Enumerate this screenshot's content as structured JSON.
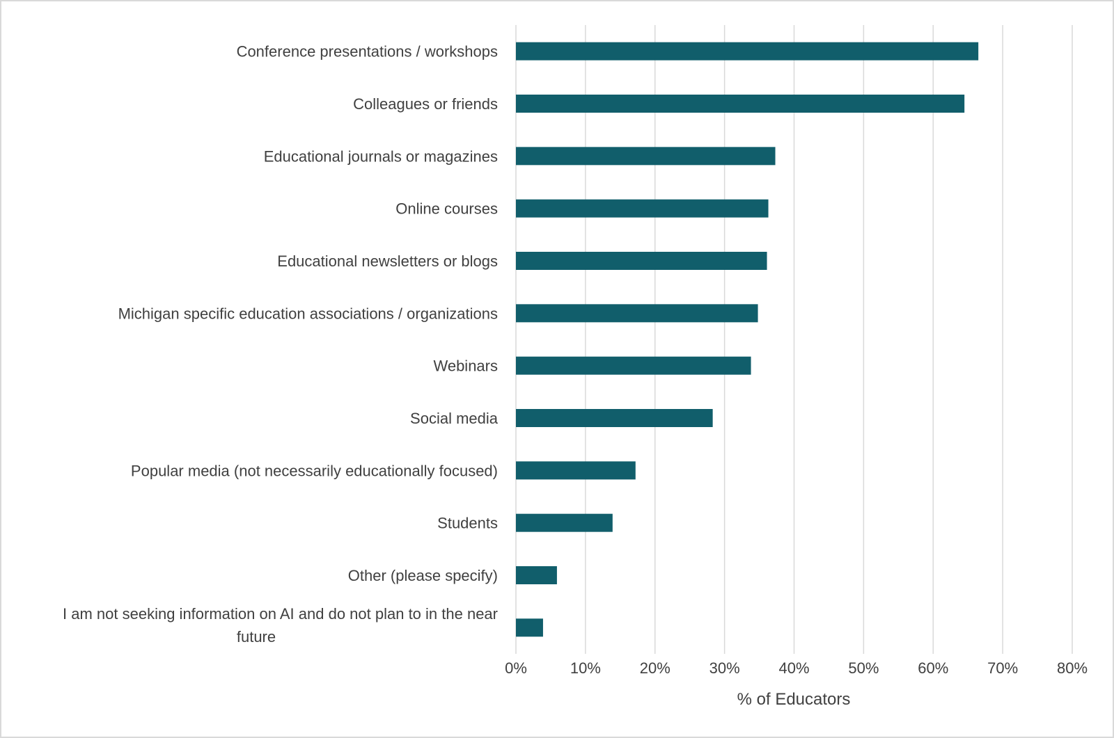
{
  "chart_data": {
    "type": "bar",
    "orientation": "horizontal",
    "title": "",
    "xlabel": "% of Educators",
    "ylabel": "",
    "xlim": [
      0,
      80
    ],
    "xticks": [
      "0%",
      "10%",
      "20%",
      "30%",
      "40%",
      "50%",
      "60%",
      "70%",
      "80%"
    ],
    "grid": "vertical",
    "bar_color": "#115e6b",
    "categories": [
      "Conference presentations / workshops",
      "Colleagues or friends",
      "Educational journals or magazines",
      "Online courses",
      "Educational newsletters or blogs",
      "Michigan specific education associations / organizations",
      "Webinars",
      "Social media",
      "Popular media (not necessarily educationally focused)",
      "Students",
      "Other (please specify)",
      "I am not seeking information on AI and do not plan to in the near future"
    ],
    "category_lines": [
      [
        "Conference presentations / workshops"
      ],
      [
        "Colleagues or friends"
      ],
      [
        "Educational journals or magazines"
      ],
      [
        "Online courses"
      ],
      [
        "Educational newsletters or blogs"
      ],
      [
        "Michigan specific education associations / organizations"
      ],
      [
        "Webinars"
      ],
      [
        "Social media"
      ],
      [
        "Popular media (not necessarily educationally focused)"
      ],
      [
        "Students"
      ],
      [
        "Other (please specify)"
      ],
      [
        "I am not seeking information on AI and do not plan to in the near",
        "future"
      ]
    ],
    "values": [
      66.5,
      64.5,
      37.3,
      36.3,
      36.1,
      34.8,
      33.8,
      28.3,
      17.2,
      13.9,
      5.9,
      3.9
    ]
  }
}
